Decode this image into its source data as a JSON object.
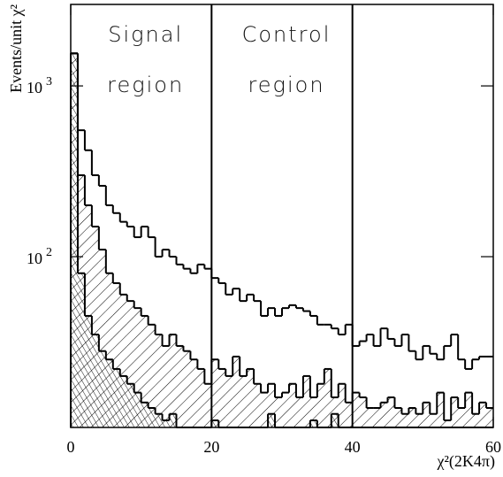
{
  "chart_data": {
    "type": "histogram",
    "xlabel": "χ²(2K4π)",
    "ylabel": "Events/unit χ²",
    "bins": [
      0,
      1,
      2,
      3,
      4,
      5,
      6,
      7,
      8,
      9,
      10,
      11,
      12,
      13,
      14,
      15,
      16,
      17,
      18,
      19,
      20,
      21,
      22,
      23,
      24,
      25,
      26,
      27,
      28,
      29,
      30,
      31,
      32,
      33,
      34,
      35,
      36,
      37,
      38,
      39,
      40,
      41,
      42,
      43,
      44,
      45,
      46,
      47,
      48,
      49,
      50,
      51,
      52,
      53,
      54,
      55,
      56,
      57,
      58,
      59,
      60
    ],
    "series": [
      {
        "color": "#000000",
        "values": [
          1550,
          550,
          420,
          300,
          260,
          200,
          180,
          160,
          150,
          130,
          150,
          130,
          100,
          110,
          100,
          90,
          85,
          80,
          90,
          85,
          75,
          70,
          60,
          65,
          55,
          60,
          55,
          45,
          50,
          45,
          50,
          52,
          50,
          48,
          45,
          40,
          40,
          38,
          35,
          40,
          30,
          32,
          35,
          30,
          38,
          33,
          30,
          35,
          28,
          25,
          30,
          27,
          25,
          30,
          35,
          25,
          22,
          25,
          26,
          26
        ]
      },
      {
        "color": "#000000",
        "values": [
          1550,
          300,
          200,
          150,
          110,
          80,
          70,
          60,
          55,
          50,
          45,
          40,
          35,
          30,
          35,
          30,
          28,
          25,
          22,
          18,
          25,
          22,
          20,
          26,
          20,
          22,
          18,
          16,
          18,
          15,
          16,
          18,
          15,
          20,
          15,
          18,
          22,
          15,
          18,
          14,
          16,
          15,
          13,
          13,
          14,
          15,
          13,
          12,
          13,
          12,
          14,
          12,
          16,
          11,
          15,
          13,
          16,
          12,
          14,
          13
        ]
      },
      {
        "color": "#000000",
        "values": [
          1550,
          80,
          45,
          35,
          28,
          25,
          22,
          20,
          18,
          16,
          14,
          13,
          12,
          11,
          12,
          10,
          10,
          10,
          10,
          10,
          11,
          10,
          10,
          10,
          10,
          10,
          10,
          10,
          12,
          10,
          10,
          10,
          10,
          10,
          11,
          10,
          10,
          12,
          10,
          10,
          10,
          10,
          10,
          10,
          10,
          10,
          10,
          10,
          10,
          10,
          10,
          10,
          10,
          10,
          10,
          10,
          10,
          10,
          10,
          10
        ]
      }
    ],
    "xlim": [
      0,
      60
    ],
    "ylim": [
      10,
      3000
    ],
    "log_y": true,
    "xticks": [
      0,
      20,
      40,
      60
    ],
    "yticks": [
      {
        "value": 100,
        "label": "10",
        "exponent": "2"
      },
      {
        "value": 1000,
        "label": "10",
        "exponent": "3"
      }
    ],
    "vlines": [
      20,
      40
    ],
    "annotations": [
      [
        "Signal",
        "region"
      ],
      [
        "Control",
        "region"
      ]
    ]
  }
}
